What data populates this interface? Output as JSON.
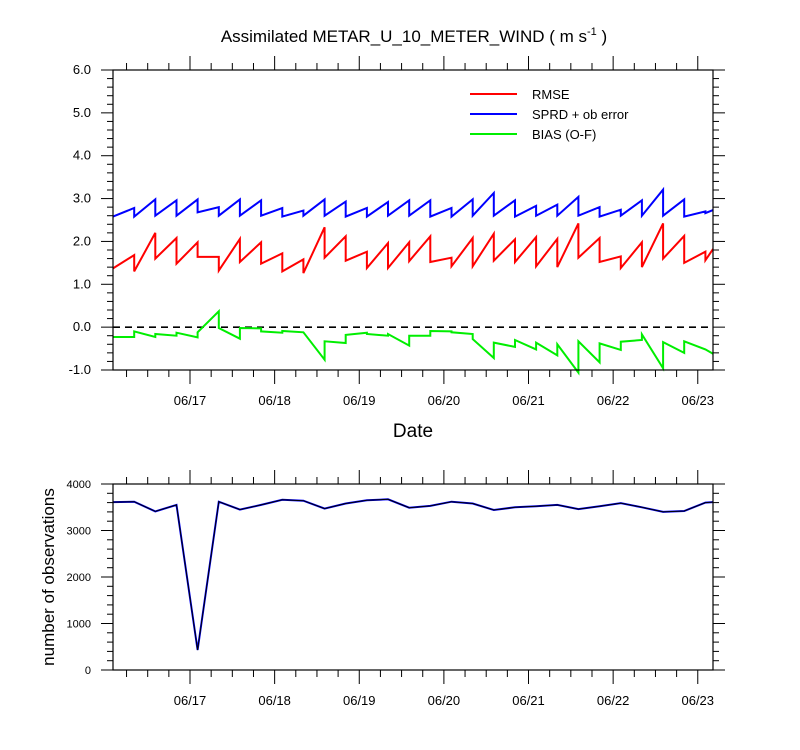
{
  "chart_data": [
    {
      "type": "line",
      "title": "Assimilated METAR_U_10_METER_WIND ( m s",
      "title_superscript": "-1",
      "title_end": " )",
      "xlabel": "Date",
      "ylabel": "",
      "xlim": [
        16.09,
        23.18
      ],
      "ylim": [
        -1.0,
        6.0
      ],
      "yticks": [
        "-1.0",
        "0.0",
        "1.0",
        "2.0",
        "3.0",
        "4.0",
        "5.0",
        "6.0"
      ],
      "ytick_values": [
        -1,
        0,
        1,
        2,
        3,
        4,
        5,
        6
      ],
      "xtick_labels": [
        "06/17",
        "06/18",
        "06/19",
        "06/20",
        "06/21",
        "06/22",
        "06/23"
      ],
      "xtick_values": [
        17,
        18,
        19,
        20,
        21,
        22,
        23
      ],
      "zero_line": true,
      "legend_position": "top-right",
      "x": [
        16.09,
        16.34,
        16.34,
        16.59,
        16.59,
        16.84,
        16.84,
        17.09,
        17.09,
        17.34,
        17.34,
        17.59,
        17.59,
        17.84,
        17.84,
        18.09,
        18.09,
        18.34,
        18.34,
        18.59,
        18.59,
        18.84,
        18.84,
        19.09,
        19.09,
        19.34,
        19.34,
        19.59,
        19.59,
        19.84,
        19.84,
        20.09,
        20.09,
        20.34,
        20.34,
        20.59,
        20.59,
        20.84,
        20.84,
        21.09,
        21.09,
        21.34,
        21.34,
        21.59,
        21.59,
        21.84,
        21.84,
        22.09,
        22.09,
        22.34,
        22.34,
        22.59,
        22.59,
        22.84,
        22.84,
        23.09,
        23.09,
        23.18
      ],
      "series": [
        {
          "name": "RMSE",
          "color": "#ff0000",
          "values": [
            1.37,
            1.68,
            1.3,
            2.2,
            1.6,
            2.08,
            1.48,
            1.98,
            1.64,
            1.64,
            1.32,
            2.06,
            1.52,
            1.98,
            1.48,
            1.72,
            1.3,
            1.58,
            1.26,
            2.33,
            1.62,
            2.12,
            1.55,
            1.76,
            1.38,
            1.96,
            1.38,
            1.98,
            1.54,
            2.12,
            1.52,
            1.62,
            1.42,
            2.08,
            1.42,
            2.18,
            1.55,
            2.05,
            1.52,
            2.1,
            1.42,
            2.06,
            1.4,
            2.42,
            1.62,
            2.08,
            1.52,
            1.65,
            1.38,
            1.98,
            1.4,
            2.42,
            1.6,
            2.13,
            1.5,
            1.76,
            1.56,
            1.82
          ]
        },
        {
          "name": "SPRD + ob error",
          "color": "#0000ff",
          "values": [
            2.58,
            2.78,
            2.58,
            2.98,
            2.6,
            2.96,
            2.6,
            2.98,
            2.68,
            2.8,
            2.6,
            2.98,
            2.6,
            2.96,
            2.6,
            2.78,
            2.58,
            2.72,
            2.6,
            2.98,
            2.6,
            2.93,
            2.58,
            2.78,
            2.58,
            2.92,
            2.6,
            2.96,
            2.6,
            2.96,
            2.58,
            2.78,
            2.58,
            2.98,
            2.6,
            3.13,
            2.6,
            2.96,
            2.58,
            2.83,
            2.6,
            2.86,
            2.6,
            3.04,
            2.6,
            2.8,
            2.58,
            2.74,
            2.6,
            2.96,
            2.6,
            3.21,
            2.6,
            2.98,
            2.58,
            2.7,
            2.66,
            2.73
          ]
        },
        {
          "name": "BIAS (O-F)",
          "color": "#00ee00",
          "values": [
            -0.23,
            -0.23,
            -0.1,
            -0.23,
            -0.16,
            -0.2,
            -0.13,
            -0.24,
            -0.12,
            0.37,
            -0.02,
            -0.27,
            -0.02,
            -0.03,
            -0.1,
            -0.13,
            -0.09,
            -0.12,
            -0.12,
            -0.76,
            -0.33,
            -0.37,
            -0.18,
            -0.13,
            -0.16,
            -0.2,
            -0.16,
            -0.43,
            -0.2,
            -0.2,
            -0.09,
            -0.1,
            -0.12,
            -0.16,
            -0.28,
            -0.72,
            -0.36,
            -0.46,
            -0.3,
            -0.52,
            -0.36,
            -0.66,
            -0.4,
            -1.06,
            -0.33,
            -0.82,
            -0.38,
            -0.53,
            -0.34,
            -0.3,
            -0.17,
            -0.96,
            -0.35,
            -0.6,
            -0.33,
            -0.52,
            -0.52,
            -0.62
          ]
        }
      ]
    },
    {
      "type": "line",
      "title": "",
      "xlabel": "",
      "ylabel": "number of observations",
      "xlim": [
        16.09,
        23.18
      ],
      "ylim": [
        0,
        4000
      ],
      "yticks": [
        "0",
        "1000",
        "2000",
        "3000",
        "4000"
      ],
      "ytick_values": [
        0,
        1000,
        2000,
        3000,
        4000
      ],
      "xtick_labels": [
        "06/17",
        "06/18",
        "06/19",
        "06/20",
        "06/21",
        "06/22",
        "06/23"
      ],
      "xtick_values": [
        17,
        18,
        19,
        20,
        21,
        22,
        23
      ],
      "x": [
        16.09,
        16.34,
        16.59,
        16.84,
        17.09,
        17.34,
        17.59,
        17.84,
        18.09,
        18.34,
        18.59,
        18.84,
        19.09,
        19.34,
        19.59,
        19.84,
        20.09,
        20.34,
        20.59,
        20.84,
        21.09,
        21.34,
        21.59,
        21.84,
        22.09,
        22.34,
        22.59,
        22.84,
        23.09,
        23.18
      ],
      "series": [
        {
          "name": "",
          "color": "#0000ff",
          "values": [
            3610,
            3620,
            3410,
            3550,
            430,
            3620,
            3450,
            3550,
            3660,
            3640,
            3470,
            3580,
            3650,
            3670,
            3490,
            3530,
            3620,
            3580,
            3440,
            3500,
            3520,
            3550,
            3460,
            3520,
            3590,
            3500,
            3400,
            3420,
            3600,
            3610
          ]
        },
        {
          "name": "",
          "color": "#000000",
          "values": [
            3610,
            3620,
            3410,
            3550,
            430,
            3620,
            3450,
            3550,
            3660,
            3640,
            3470,
            3580,
            3650,
            3670,
            3490,
            3530,
            3620,
            3580,
            3440,
            3500,
            3520,
            3550,
            3460,
            3520,
            3590,
            3500,
            3400,
            3420,
            3600,
            3610
          ]
        }
      ]
    }
  ]
}
